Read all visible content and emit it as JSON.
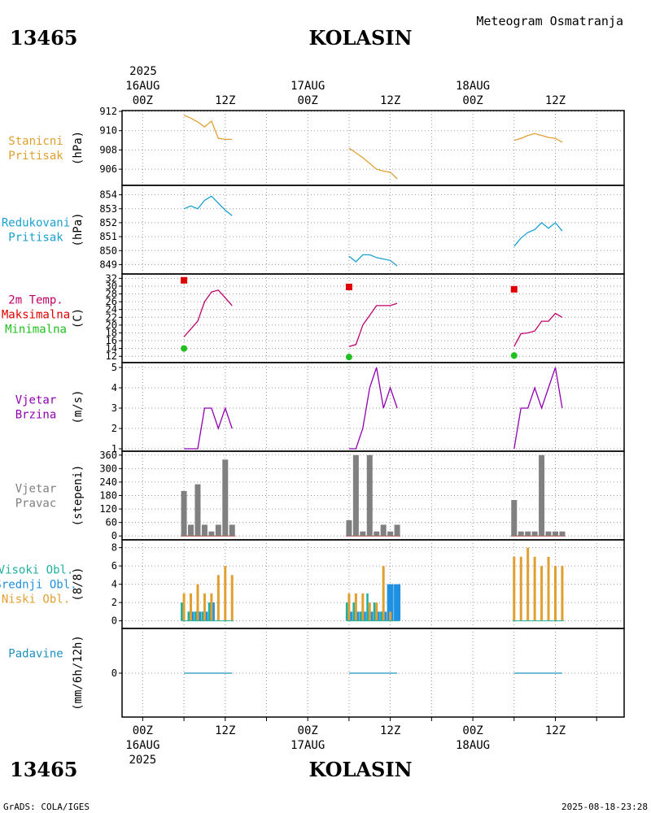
{
  "header": {
    "station_id": "13465",
    "station_name": "KOLASIN",
    "title": "Meteogram Osmatranja"
  },
  "footer": {
    "left": "GrADS: COLA/IGES",
    "right": "2025-08-18-23:28"
  },
  "colors": {
    "pressure_station": "#e0a030",
    "pressure_reduced": "#1aa0d0",
    "temp_line": "#c0006a",
    "temp_max": "#e00000",
    "temp_min": "#20c020",
    "wind": "#9000b0",
    "wind_dir": "#808080",
    "cloud_high": "#20b0a0",
    "cloud_mid": "#2090e0",
    "cloud_low": "#e0a030",
    "precip": "#2090c0"
  },
  "time_axis": {
    "top_year": "2025",
    "labels": [
      {
        "hour": 0,
        "time": "00Z",
        "date": "16AUG",
        "year": "2025"
      },
      {
        "hour": 12,
        "time": "12Z",
        "date": "",
        "year": ""
      },
      {
        "hour": 24,
        "time": "00Z",
        "date": "17AUG",
        "year": ""
      },
      {
        "hour": 36,
        "time": "12Z",
        "date": "",
        "year": ""
      },
      {
        "hour": 48,
        "time": "00Z",
        "date": "18AUG",
        "year": ""
      },
      {
        "hour": 60,
        "time": "12Z",
        "date": "",
        "year": ""
      }
    ],
    "range_hours": [
      -3,
      70
    ]
  },
  "chart_data": [
    {
      "type": "line",
      "id": "station_pressure",
      "label_lines": [
        "Stanicni",
        "Pritisak"
      ],
      "ylabel": "(hPa)",
      "ylim": [
        905,
        912
      ],
      "yticks": [
        906,
        908,
        910,
        912
      ],
      "series": [
        {
          "name": "Stanicni Pritisak",
          "color_key": "pressure_station",
          "segments": [
            [
              [
                6,
                911.6
              ],
              [
                7,
                911.3
              ],
              [
                8,
                910.9
              ],
              [
                9,
                910.4
              ],
              [
                10,
                911.0
              ],
              [
                11,
                909.2
              ],
              [
                12,
                909.1
              ],
              [
                13,
                909.1
              ]
            ],
            [
              [
                30,
                908.2
              ],
              [
                31,
                907.7
              ],
              [
                32,
                907.2
              ],
              [
                33,
                906.6
              ],
              [
                34,
                906.0
              ],
              [
                35,
                905.8
              ],
              [
                36,
                905.7
              ],
              [
                37,
                905.0
              ]
            ],
            [
              [
                54,
                909.0
              ],
              [
                55,
                909.2
              ],
              [
                56,
                909.5
              ],
              [
                57,
                909.7
              ],
              [
                58,
                909.5
              ],
              [
                59,
                909.3
              ],
              [
                60,
                909.2
              ],
              [
                61,
                908.8
              ]
            ]
          ]
        }
      ]
    },
    {
      "type": "line",
      "id": "reduced_pressure",
      "label_lines": [
        "Redukovani",
        "Pritisak"
      ],
      "ylabel": "(hPa)",
      "ylim": [
        848.5,
        854.5
      ],
      "yticks": [
        849,
        850,
        851,
        852,
        853,
        854
      ],
      "series": [
        {
          "name": "Redukovani Pritisak",
          "color_key": "pressure_reduced",
          "segments": [
            [
              [
                6,
                853.0
              ],
              [
                7,
                853.2
              ],
              [
                8,
                853.0
              ],
              [
                9,
                853.6
              ],
              [
                10,
                853.9
              ],
              [
                11,
                853.4
              ],
              [
                12,
                852.9
              ],
              [
                13,
                852.5
              ]
            ],
            [
              [
                30,
                849.6
              ],
              [
                31,
                849.2
              ],
              [
                32,
                849.7
              ],
              [
                33,
                849.7
              ],
              [
                34,
                849.5
              ],
              [
                35,
                849.4
              ],
              [
                36,
                849.3
              ],
              [
                37,
                848.9
              ]
            ],
            [
              [
                54,
                850.3
              ],
              [
                55,
                850.9
              ],
              [
                56,
                851.3
              ],
              [
                57,
                851.5
              ],
              [
                58,
                852.0
              ],
              [
                59,
                851.6
              ],
              [
                60,
                852.0
              ],
              [
                61,
                851.4
              ]
            ]
          ]
        }
      ]
    },
    {
      "type": "line",
      "id": "temperature",
      "label_lines": [
        "2m Temp.",
        "Maksimalna",
        "Minimalna"
      ],
      "label_color_keys": [
        "temp_line",
        "temp_max",
        "temp_min"
      ],
      "ylabel": "(C)",
      "ylim": [
        11,
        32.5
      ],
      "yticks": [
        12,
        14,
        16,
        18,
        20,
        22,
        24,
        26,
        28,
        30,
        32
      ],
      "series": [
        {
          "name": "2m Temp.",
          "color_key": "temp_line",
          "segments": [
            [
              [
                6,
                17.0
              ],
              [
                7,
                19.0
              ],
              [
                8,
                21.0
              ],
              [
                9,
                26.0
              ],
              [
                10,
                28.5
              ],
              [
                11,
                29.0
              ],
              [
                12,
                27.0
              ],
              [
                13,
                25.0
              ]
            ],
            [
              [
                30,
                14.5
              ],
              [
                31,
                15.0
              ],
              [
                32,
                20.0
              ],
              [
                33,
                22.5
              ],
              [
                34,
                25.0
              ],
              [
                35,
                25.0
              ],
              [
                36,
                25.0
              ],
              [
                37,
                25.6
              ]
            ],
            [
              [
                54,
                14.5
              ],
              [
                55,
                17.8
              ],
              [
                56,
                18.0
              ],
              [
                57,
                18.5
              ],
              [
                58,
                21.0
              ],
              [
                59,
                21.0
              ],
              [
                60,
                23.0
              ],
              [
                61,
                22.0
              ]
            ]
          ]
        },
        {
          "name": "Maksimalna",
          "color_key": "temp_max",
          "marker": "square",
          "points": [
            [
              6,
              31.5
            ],
            [
              30,
              29.8
            ],
            [
              54,
              29.2
            ]
          ]
        },
        {
          "name": "Minimalna",
          "color_key": "temp_min",
          "marker": "circle",
          "points": [
            [
              6,
              14.0
            ],
            [
              30,
              11.8
            ],
            [
              54,
              12.2
            ]
          ]
        }
      ]
    },
    {
      "type": "line",
      "id": "wind_speed",
      "label_lines": [
        "Vjetar",
        "Brzina"
      ],
      "ylabel": "(m/s)",
      "ylim": [
        1,
        5
      ],
      "yticks": [
        1,
        2,
        3,
        4,
        5
      ],
      "series": [
        {
          "name": "Vjetar Brzina",
          "color_key": "wind",
          "segments": [
            [
              [
                6,
                1
              ],
              [
                7,
                1
              ],
              [
                8,
                1
              ],
              [
                9,
                3
              ],
              [
                10,
                3
              ],
              [
                11,
                2
              ],
              [
                12,
                3
              ],
              [
                13,
                2
              ]
            ],
            [
              [
                30,
                1
              ],
              [
                31,
                1
              ],
              [
                32,
                2
              ],
              [
                33,
                4
              ],
              [
                34,
                5
              ],
              [
                35,
                3
              ],
              [
                36,
                4
              ],
              [
                37,
                3
              ]
            ],
            [
              [
                54,
                1
              ],
              [
                55,
                3
              ],
              [
                56,
                3
              ],
              [
                57,
                4
              ],
              [
                58,
                3
              ],
              [
                59,
                4
              ],
              [
                60,
                5
              ],
              [
                61,
                3
              ]
            ]
          ]
        }
      ]
    },
    {
      "type": "bar",
      "id": "wind_direction",
      "label_lines": [
        "Vjetar",
        "Pravac"
      ],
      "ylabel": "(stepeni)",
      "ylim": [
        -10,
        370
      ],
      "yticks": [
        0,
        60,
        120,
        180,
        240,
        300,
        360
      ],
      "series": [
        {
          "name": "Vjetar Pravac",
          "color_key": "wind_dir",
          "x": [
            6,
            7,
            8,
            9,
            10,
            11,
            12,
            13,
            30,
            31,
            32,
            33,
            34,
            35,
            36,
            37,
            54,
            55,
            56,
            57,
            58,
            59,
            60,
            61
          ],
          "values": [
            200,
            50,
            230,
            50,
            20,
            50,
            340,
            50,
            70,
            360,
            20,
            360,
            20,
            50,
            20,
            50,
            160,
            20,
            20,
            20,
            360,
            20,
            20,
            20
          ]
        }
      ]
    },
    {
      "type": "bar",
      "id": "clouds",
      "label_lines": [
        "Visoki Obl.",
        "Srednji Obl.",
        "Niski Obl."
      ],
      "label_color_keys": [
        "cloud_high",
        "cloud_mid",
        "cloud_low"
      ],
      "ylabel": "(8/8)",
      "ylim": [
        -0.3,
        8.5
      ],
      "yticks": [
        0,
        2,
        4,
        6,
        8
      ],
      "x": [
        6,
        7,
        8,
        9,
        10,
        11,
        12,
        13,
        30,
        31,
        32,
        33,
        34,
        35,
        36,
        37,
        54,
        55,
        56,
        57,
        58,
        59,
        60,
        61
      ],
      "series": [
        {
          "name": "Visoki Obl.",
          "color_key": "cloud_high",
          "values": [
            2,
            1,
            1,
            1,
            2,
            0,
            0,
            0,
            2,
            2,
            1,
            3,
            2,
            1,
            0,
            0,
            0,
            0,
            0,
            0,
            0,
            0,
            0,
            0
          ]
        },
        {
          "name": "Srednji Obl.",
          "color_key": "cloud_mid",
          "values": [
            0,
            1,
            1,
            1,
            2,
            0,
            0,
            0,
            1,
            1,
            1,
            1,
            1,
            1,
            4,
            4,
            0,
            0,
            0,
            0,
            0,
            0,
            0,
            0
          ]
        },
        {
          "name": "Niski Obl.",
          "color_key": "cloud_low",
          "values": [
            3,
            3,
            4,
            3,
            3,
            5,
            6,
            5,
            3,
            3,
            3,
            2,
            2,
            6,
            1,
            0,
            7,
            7,
            8,
            7,
            6,
            7,
            6,
            6
          ]
        }
      ]
    },
    {
      "type": "line",
      "id": "precipitation",
      "label_lines": [
        "Padavine"
      ],
      "ylabel": "(mm/6h/12h)",
      "ylim": [
        -1,
        1
      ],
      "yticks": [
        0
      ],
      "series": [
        {
          "name": "Padavine",
          "color_key": "precip",
          "segments": [
            [
              [
                6,
                0
              ],
              [
                13,
                0
              ]
            ],
            [
              [
                30,
                0
              ],
              [
                37,
                0
              ]
            ],
            [
              [
                54,
                0
              ],
              [
                61,
                0
              ]
            ]
          ]
        }
      ]
    }
  ]
}
